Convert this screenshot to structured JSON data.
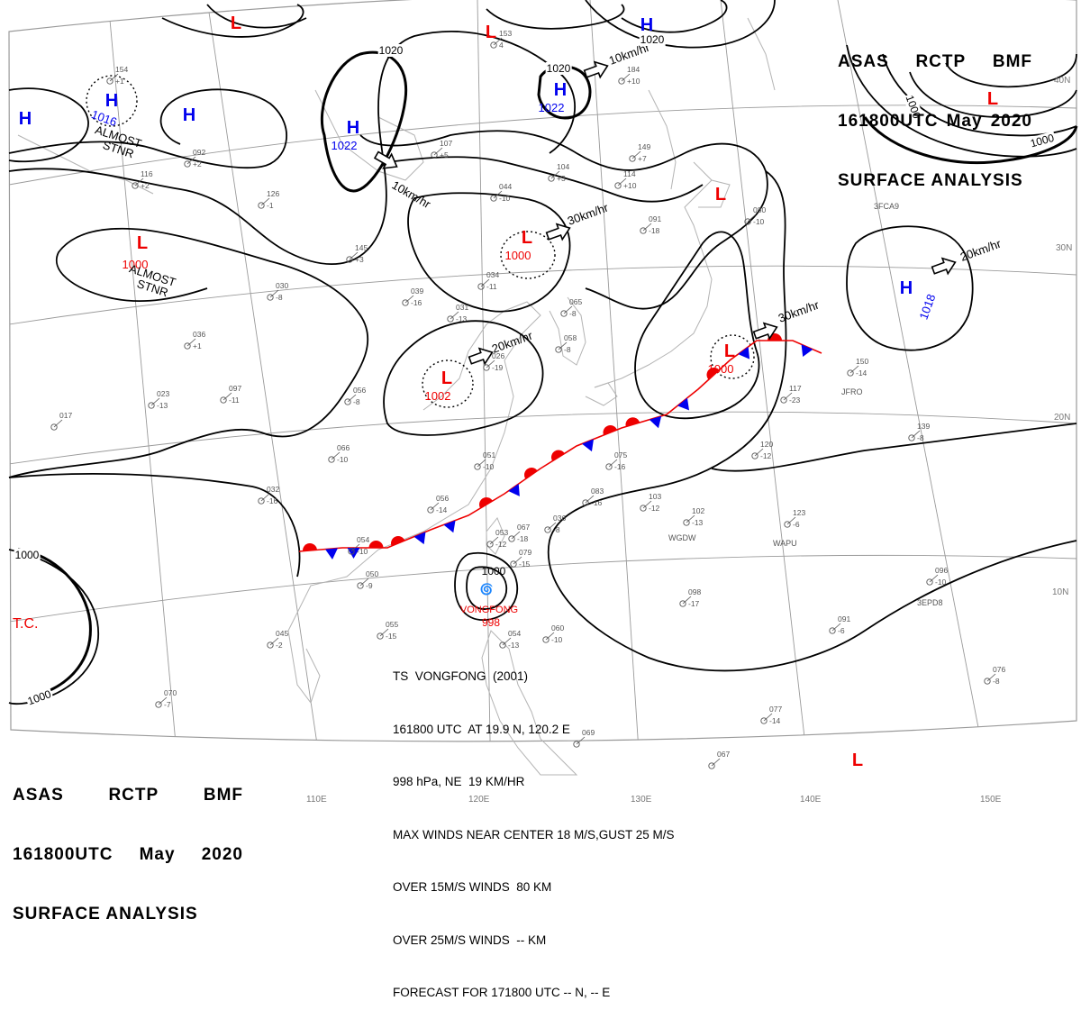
{
  "header": {
    "agency": [
      "ASAS",
      "RCTP",
      "BMF"
    ],
    "time": [
      "161800UTC",
      "May",
      "2020"
    ],
    "product": "SURFACE ANALYSIS"
  },
  "colors": {
    "high": "#0000ee",
    "low": "#ee0000",
    "isobar": "#000000",
    "grid": "#9a9a9a",
    "coast": "#b4b4b4"
  },
  "pressure_centers": [
    {
      "type": "H",
      "value": "1016",
      "note": [
        "ALMOST",
        "STNR"
      ]
    },
    {
      "type": "H",
      "value": ""
    },
    {
      "type": "H",
      "value": ""
    },
    {
      "type": "H",
      "value": "1022",
      "motion": "10km/hr"
    },
    {
      "type": "H",
      "value": "1022",
      "motion": "10km/hr"
    },
    {
      "type": "H",
      "value": ""
    },
    {
      "type": "H",
      "value": "1018",
      "motion": "20km/hr"
    },
    {
      "type": "L",
      "value": "1000",
      "note": [
        "ALMOST",
        "STNR"
      ]
    },
    {
      "type": "L",
      "value": "1000",
      "motion": "30km/hr"
    },
    {
      "type": "L",
      "value": "1002",
      "motion": "20km/hr"
    },
    {
      "type": "L",
      "value": "1000",
      "motion": "30km/hr"
    },
    {
      "type": "L",
      "value": ""
    },
    {
      "type": "L",
      "value": ""
    },
    {
      "type": "L",
      "value": ""
    },
    {
      "type": "L",
      "value": ""
    },
    {
      "type": "L",
      "value": ""
    }
  ],
  "isobar_labels": [
    "1020",
    "1020",
    "1020",
    "1000",
    "1000",
    "1000",
    "1000",
    "1000"
  ],
  "typhoon": {
    "symbol_label": "T.C.",
    "center_name": "VONGFONG",
    "center_pressure": "998",
    "center_isobar": "1000",
    "bulletin": [
      "TS  VONGFONG  (2001)",
      "161800 UTC  AT 19.9 N, 120.2 E",
      "998 hPa, NE  19 KM/HR",
      "MAX WINDS NEAR CENTER 18 M/S,GUST 25 M/S",
      "OVER 15M/S WINDS  80 KM",
      "OVER 25M/S WINDS  -- KM",
      "FORECAST FOR 171800 UTC -- N, -- E"
    ]
  },
  "grid_labels": {
    "lon": [
      "110E",
      "120E",
      "130E",
      "140E",
      "150E"
    ],
    "lat": [
      "40N",
      "30N",
      "20N",
      "10N"
    ]
  },
  "ship_ids": [
    "3FCA9",
    "JFRO",
    "WGDW",
    "WAPU",
    "3EPD8"
  ],
  "station_obs": [
    {
      "t": "154",
      "v": "+1"
    },
    {
      "t": "116",
      "v": "+2"
    },
    {
      "t": "092",
      "v": "+2"
    },
    {
      "t": "126",
      "v": "-1"
    },
    {
      "t": "145",
      "v": "+3"
    },
    {
      "t": "030",
      "v": "-8"
    },
    {
      "t": "039",
      "v": "-16"
    },
    {
      "t": "036",
      "v": "+1"
    },
    {
      "t": "023",
      "v": "-13"
    },
    {
      "t": "097",
      "v": "-11"
    },
    {
      "t": "017",
      "v": ""
    },
    {
      "t": "056",
      "v": "-8"
    },
    {
      "t": "066",
      "v": "-10"
    },
    {
      "t": "032",
      "v": "-16"
    },
    {
      "t": "054",
      "v": "-10"
    },
    {
      "t": "050",
      "v": "-9"
    },
    {
      "t": "045",
      "v": "-2"
    },
    {
      "t": "055",
      "v": "-15"
    },
    {
      "t": "070",
      "v": "-7"
    },
    {
      "t": "153",
      "v": "4"
    },
    {
      "t": "107",
      "v": "+5"
    },
    {
      "t": "104",
      "v": "+3"
    },
    {
      "t": "044",
      "v": "-10"
    },
    {
      "t": "034",
      "v": "-11"
    },
    {
      "t": "031",
      "v": "-13"
    },
    {
      "t": "026",
      "v": "-19"
    },
    {
      "t": "051",
      "v": "-10"
    },
    {
      "t": "056",
      "v": "-14"
    },
    {
      "t": "067",
      "v": "-18"
    },
    {
      "t": "053",
      "v": "-12"
    },
    {
      "t": "079",
      "v": "-15"
    },
    {
      "t": "060",
      "v": "-10"
    },
    {
      "t": "054",
      "v": "-13"
    },
    {
      "t": "184",
      "v": "+10"
    },
    {
      "t": "149",
      "v": "+7"
    },
    {
      "t": "114",
      "v": "+10"
    },
    {
      "t": "091",
      "v": "-18"
    },
    {
      "t": "065",
      "v": "-8"
    },
    {
      "t": "058",
      "v": "-8"
    },
    {
      "t": "075",
      "v": "-16"
    },
    {
      "t": "083",
      "v": "-16"
    },
    {
      "t": "103",
      "v": "-12"
    },
    {
      "t": "036",
      "v": "-8"
    },
    {
      "t": "102",
      "v": "-13"
    },
    {
      "t": "123",
      "v": "-6"
    },
    {
      "t": "080",
      "v": "-10"
    },
    {
      "t": "117",
      "v": "-23"
    },
    {
      "t": "120",
      "v": "-12"
    },
    {
      "t": "150",
      "v": "-14"
    },
    {
      "t": "139",
      "v": "-8"
    },
    {
      "t": "096",
      "v": "-10"
    },
    {
      "t": "098",
      "v": "-17"
    },
    {
      "t": "091",
      "v": "-6"
    },
    {
      "t": "076",
      "v": "-8"
    },
    {
      "t": "077",
      "v": "-14"
    },
    {
      "t": "067",
      "v": ""
    },
    {
      "t": "069",
      "v": ""
    }
  ]
}
